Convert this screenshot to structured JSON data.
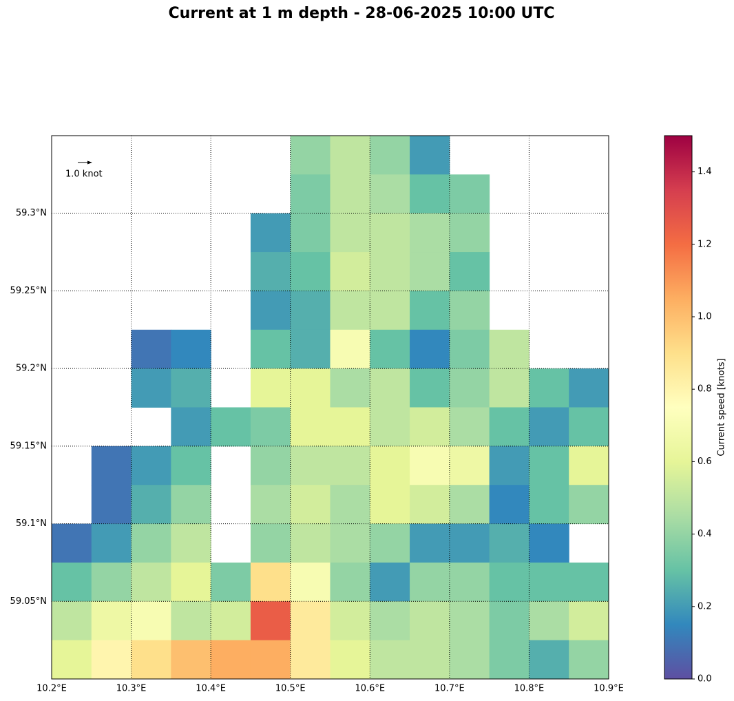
{
  "chart_data": {
    "type": "heatmap",
    "title": "Current at 1 m depth - 28-06-2025 10:00 UTC",
    "annotation": "1.0 knot",
    "x": [
      10.225,
      10.275,
      10.325,
      10.375,
      10.425,
      10.475,
      10.525,
      10.575,
      10.625,
      10.675,
      10.725,
      10.775,
      10.825,
      10.875
    ],
    "y": [
      59.3375,
      59.3125,
      59.2875,
      59.2625,
      59.2375,
      59.2125,
      59.1875,
      59.1625,
      59.1375,
      59.1125,
      59.0875,
      59.0625,
      59.0375,
      59.0125
    ],
    "values": [
      [
        null,
        null,
        null,
        null,
        null,
        null,
        0.4,
        0.5,
        0.4,
        0.2,
        null,
        null,
        null,
        null
      ],
      [
        null,
        null,
        null,
        null,
        null,
        null,
        0.35,
        0.5,
        0.45,
        0.3,
        0.35,
        null,
        null,
        null
      ],
      [
        null,
        null,
        null,
        null,
        null,
        0.2,
        0.35,
        0.5,
        0.5,
        0.45,
        0.4,
        null,
        null,
        null
      ],
      [
        null,
        null,
        null,
        null,
        null,
        0.25,
        0.3,
        0.55,
        0.5,
        0.45,
        0.3,
        null,
        null,
        null
      ],
      [
        null,
        null,
        null,
        null,
        null,
        0.2,
        0.25,
        0.5,
        0.5,
        0.3,
        0.4,
        null,
        null,
        null
      ],
      [
        null,
        null,
        0.1,
        0.15,
        null,
        0.3,
        0.25,
        0.7,
        0.3,
        0.15,
        0.35,
        0.5,
        null,
        null
      ],
      [
        null,
        null,
        0.2,
        0.25,
        null,
        0.6,
        0.6,
        0.45,
        0.5,
        0.3,
        0.4,
        0.5,
        0.3,
        0.2
      ],
      [
        null,
        null,
        null,
        0.2,
        0.3,
        0.35,
        0.6,
        0.6,
        0.5,
        0.55,
        0.45,
        0.3,
        0.2,
        0.3
      ],
      [
        null,
        0.1,
        0.2,
        0.3,
        null,
        0.4,
        0.5,
        0.5,
        0.6,
        0.7,
        0.65,
        0.2,
        0.3,
        0.6
      ],
      [
        null,
        0.1,
        0.25,
        0.4,
        null,
        0.45,
        0.55,
        0.45,
        0.6,
        0.55,
        0.45,
        0.15,
        0.3,
        0.4
      ],
      [
        0.1,
        0.2,
        0.4,
        0.5,
        null,
        0.4,
        0.5,
        0.45,
        0.4,
        0.2,
        0.2,
        0.25,
        0.15,
        null
      ],
      [
        0.3,
        0.4,
        0.5,
        0.6,
        0.35,
        0.9,
        0.7,
        0.4,
        0.2,
        0.4,
        0.4,
        0.3,
        0.3,
        0.3
      ],
      [
        0.5,
        0.65,
        0.7,
        0.5,
        0.55,
        1.25,
        0.85,
        0.55,
        0.45,
        0.5,
        0.45,
        0.35,
        0.45,
        0.55
      ],
      [
        0.6,
        0.8,
        0.9,
        1.0,
        1.05,
        1.05,
        0.85,
        0.6,
        0.5,
        0.5,
        0.45,
        0.35,
        0.25,
        0.4
      ]
    ],
    "xlim": [
      10.2,
      10.9
    ],
    "ylim": [
      59.0,
      59.35
    ],
    "xticks": [
      {
        "value": 10.2,
        "label": "10.2°E"
      },
      {
        "value": 10.3,
        "label": "10.3°E"
      },
      {
        "value": 10.4,
        "label": "10.4°E"
      },
      {
        "value": 10.5,
        "label": "10.5°E"
      },
      {
        "value": 10.6,
        "label": "10.6°E"
      },
      {
        "value": 10.7,
        "label": "10.7°E"
      },
      {
        "value": 10.8,
        "label": "10.8°E"
      },
      {
        "value": 10.9,
        "label": "10.9°E"
      }
    ],
    "yticks": [
      {
        "value": 59.05,
        "label": "59.05°N"
      },
      {
        "value": 59.1,
        "label": "59.1°N"
      },
      {
        "value": 59.15,
        "label": "59.15°N"
      },
      {
        "value": 59.2,
        "label": "59.2°N"
      },
      {
        "value": 59.25,
        "label": "59.25°N"
      },
      {
        "value": 59.3,
        "label": "59.3°N"
      }
    ],
    "grid": true,
    "colormap": [
      "#5e4fa2",
      "#3288bd",
      "#66c2a5",
      "#abdda4",
      "#e6f598",
      "#ffffbf",
      "#fee08b",
      "#fdae61",
      "#f46d43",
      "#d53e4f",
      "#9e0142"
    ],
    "colorbar": {
      "label": "Current speed [knots]",
      "lim": [
        0,
        1.5
      ],
      "ticks": [
        {
          "value": 0,
          "label": "0.0"
        },
        {
          "value": 0.2,
          "label": "0.2"
        },
        {
          "value": 0.4,
          "label": "0.4"
        },
        {
          "value": 0.6,
          "label": "0.6"
        },
        {
          "value": 0.8,
          "label": "0.8"
        },
        {
          "value": 1.0,
          "label": "1.0"
        },
        {
          "value": 1.2,
          "label": "1.2"
        },
        {
          "value": 1.4,
          "label": "1.4"
        }
      ]
    }
  }
}
